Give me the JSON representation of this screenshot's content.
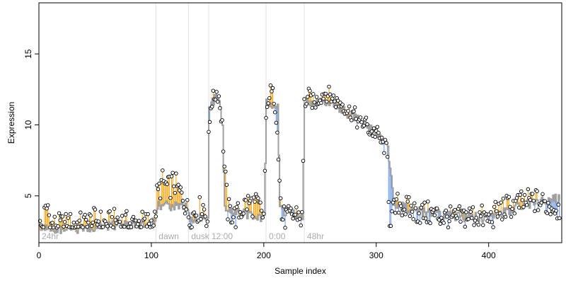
{
  "chart_data": {
    "type": "line",
    "title": "",
    "xlabel": "Sample index",
    "ylabel": "Expression",
    "xlim": [
      0,
      465
    ],
    "ylim": [
      1.7,
      18.6
    ],
    "x_ticks": [
      0,
      100,
      200,
      300,
      400
    ],
    "y_ticks": [
      5,
      10,
      15
    ],
    "grid": false,
    "region_boundaries": [
      104,
      133,
      151,
      202,
      236
    ],
    "regions": [
      {
        "label": "24hr",
        "x_start": 0
      },
      {
        "label": "dawn",
        "x_start": 104
      },
      {
        "label": "dusk",
        "x_start": 133
      },
      {
        "label": "12:00",
        "x_start": 151
      },
      {
        "label": "0:00",
        "x_start": 202
      },
      {
        "label": "48hr",
        "x_start": 236
      }
    ],
    "series": [
      {
        "name": "",
        "style": "observed points",
        "x_range": [
          1,
          463
        ],
        "knots": [
          [
            1,
            2.8
          ],
          [
            3,
            2.8
          ],
          [
            5,
            3.6
          ],
          [
            7,
            4.1
          ],
          [
            8,
            4.3
          ],
          [
            10,
            2.9
          ],
          [
            20,
            2.9
          ],
          [
            30,
            3.0
          ],
          [
            40,
            3.0
          ],
          [
            50,
            3.3
          ],
          [
            60,
            3.0
          ],
          [
            70,
            3.3
          ],
          [
            80,
            3.0
          ],
          [
            90,
            3.1
          ],
          [
            100,
            3.1
          ],
          [
            103,
            3.2
          ],
          [
            105,
            5.0
          ],
          [
            110,
            6.0
          ],
          [
            115,
            5.5
          ],
          [
            120,
            6.0
          ],
          [
            125,
            5.2
          ],
          [
            128,
            5.0
          ],
          [
            130,
            4.5
          ],
          [
            132,
            4.0
          ],
          [
            134,
            3.3
          ],
          [
            138,
            3.8
          ],
          [
            142,
            4.0
          ],
          [
            146,
            4.3
          ],
          [
            149,
            3.6
          ],
          [
            150,
            3.4
          ],
          [
            151,
            9.0
          ],
          [
            153,
            11.5
          ],
          [
            156,
            12.0
          ],
          [
            158,
            12.3
          ],
          [
            160,
            12.0
          ],
          [
            163,
            10.0
          ],
          [
            165,
            7.0
          ],
          [
            168,
            4.0
          ],
          [
            175,
            3.5
          ],
          [
            185,
            4.5
          ],
          [
            195,
            4.3
          ],
          [
            200,
            3.5
          ],
          [
            202,
            10.0
          ],
          [
            204,
            12.0
          ],
          [
            206,
            12.3
          ],
          [
            209,
            12.0
          ],
          [
            212,
            10.0
          ],
          [
            214,
            6.0
          ],
          [
            216,
            3.5
          ],
          [
            222,
            3.4
          ],
          [
            230,
            3.8
          ],
          [
            234,
            3.3
          ],
          [
            236,
            11.5
          ],
          [
            240,
            12.0
          ],
          [
            245,
            11.5
          ],
          [
            250,
            12.0
          ],
          [
            255,
            12.3
          ],
          [
            260,
            12.0
          ],
          [
            265,
            11.6
          ],
          [
            270,
            11.5
          ],
          [
            275,
            11.0
          ],
          [
            280,
            10.8
          ],
          [
            285,
            10.0
          ],
          [
            290,
            10.2
          ],
          [
            295,
            9.5
          ],
          [
            300,
            9.5
          ],
          [
            305,
            8.7
          ],
          [
            308,
            8.4
          ],
          [
            310,
            7.5
          ],
          [
            312,
            3.0
          ],
          [
            315,
            3.8
          ],
          [
            320,
            4.5
          ],
          [
            330,
            4.0
          ],
          [
            340,
            3.8
          ],
          [
            350,
            3.7
          ],
          [
            360,
            3.5
          ],
          [
            370,
            3.3
          ],
          [
            380,
            3.6
          ],
          [
            390,
            3.6
          ],
          [
            400,
            3.3
          ],
          [
            410,
            4.0
          ],
          [
            420,
            4.3
          ],
          [
            430,
            4.5
          ],
          [
            440,
            4.7
          ],
          [
            450,
            4.4
          ],
          [
            460,
            4.2
          ],
          [
            463,
            4.1
          ]
        ]
      },
      {
        "name": "",
        "style": "fitted step line",
        "x_range": [
          1,
          463
        ],
        "knots": [
          [
            1,
            2.8
          ],
          [
            20,
            2.6
          ],
          [
            40,
            2.7
          ],
          [
            60,
            2.9
          ],
          [
            80,
            3.0
          ],
          [
            103,
            3.1
          ],
          [
            105,
            4.3
          ],
          [
            132,
            4.3
          ],
          [
            134,
            3.3
          ],
          [
            150,
            3.5
          ],
          [
            151,
            11.5
          ],
          [
            160,
            12.0
          ],
          [
            163,
            10.0
          ],
          [
            165,
            4.0
          ],
          [
            200,
            3.5
          ],
          [
            202,
            11.5
          ],
          [
            212,
            11.5
          ],
          [
            214,
            4.0
          ],
          [
            234,
            3.5
          ],
          [
            236,
            11.5
          ],
          [
            250,
            11.7
          ],
          [
            260,
            11.6
          ],
          [
            270,
            11.0
          ],
          [
            280,
            10.5
          ],
          [
            290,
            10.0
          ],
          [
            300,
            9.3
          ],
          [
            310,
            8.5
          ],
          [
            315,
            4.5
          ],
          [
            330,
            4.0
          ],
          [
            350,
            3.8
          ],
          [
            370,
            3.5
          ],
          [
            400,
            3.5
          ],
          [
            420,
            4.0
          ],
          [
            440,
            4.6
          ],
          [
            463,
            4.8
          ]
        ]
      }
    ]
  },
  "colors": {
    "points_fill": "#ffffff",
    "points_stroke": "#000000",
    "fitted_line": "#a0a0a0",
    "residual_above": "#f5a000",
    "residual_below": "#6495ed",
    "region_divider": "#e0e0e0",
    "region_label": "#aaaaaa",
    "axis": "#000000"
  }
}
